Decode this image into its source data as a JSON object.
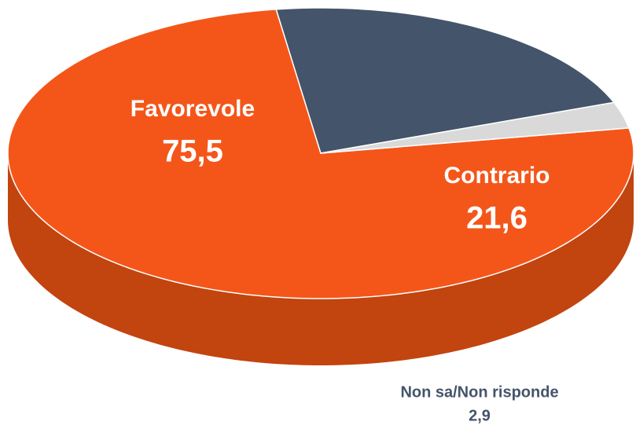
{
  "chart_data": {
    "type": "pie",
    "categories": [
      "Favorevole",
      "Contrario",
      "Non sa/Non risponde"
    ],
    "values": [
      75.5,
      21.6,
      2.9
    ],
    "value_labels": [
      "75,5",
      "21,6",
      "2,9"
    ],
    "colors": [
      "#f4561a",
      "#44546a",
      "#d9d9d9"
    ]
  }
}
